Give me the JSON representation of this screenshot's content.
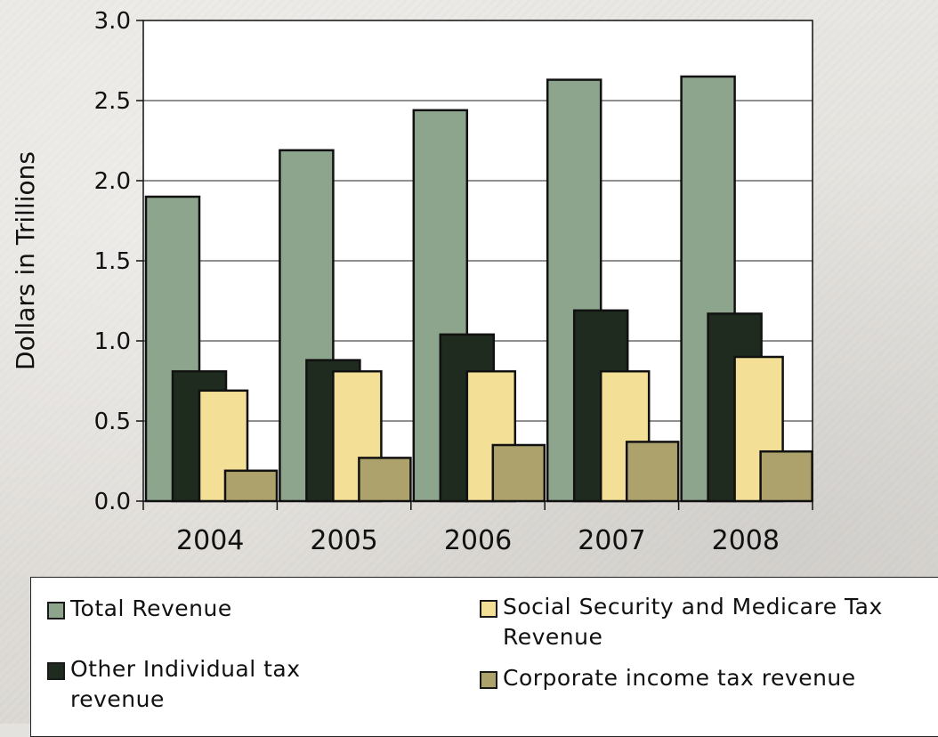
{
  "chart_data": {
    "type": "bar",
    "title": "",
    "xlabel": "",
    "ylabel": "Dollars in Trillions",
    "ylim": [
      0,
      3.0
    ],
    "yticks": [
      "0.0",
      "0.5",
      "1.0",
      "1.5",
      "2.0",
      "2.5",
      "3.0"
    ],
    "grid": true,
    "legend_position": "bottom",
    "categories": [
      "2004",
      "2005",
      "2006",
      "2007",
      "2008"
    ],
    "series": [
      {
        "name": "Total Revenue",
        "color": "#8da58c",
        "values": [
          1.9,
          2.19,
          2.44,
          2.63,
          2.65
        ]
      },
      {
        "name": "Other Individual tax revenue",
        "color": "#1e2b1e",
        "values": [
          0.81,
          0.88,
          1.04,
          1.19,
          1.17
        ]
      },
      {
        "name": "Social Security and Medicare Tax Revenue",
        "color": "#f3df96",
        "values": [
          0.69,
          0.81,
          0.81,
          0.81,
          0.9
        ]
      },
      {
        "name": "Corporate income tax revenue",
        "color": "#ada26c",
        "values": [
          0.19,
          0.27,
          0.35,
          0.37,
          0.31
        ]
      }
    ]
  }
}
